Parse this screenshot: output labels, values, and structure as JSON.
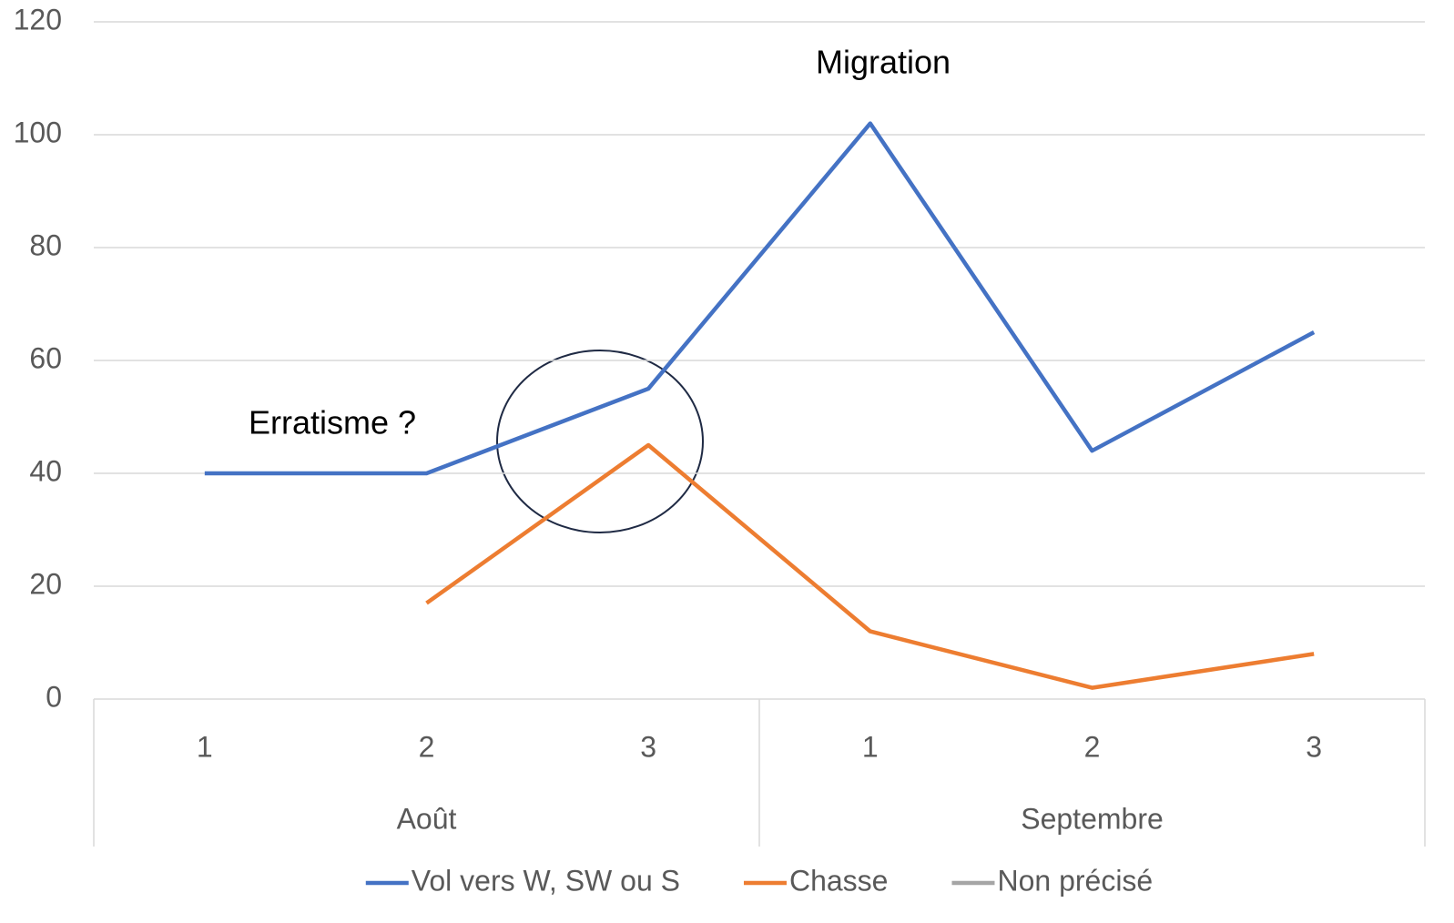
{
  "chart_data": {
    "type": "line",
    "groups": [
      {
        "name": "Août",
        "categories": [
          "1",
          "2",
          "3"
        ]
      },
      {
        "name": "Septembre",
        "categories": [
          "1",
          "2",
          "3"
        ]
      }
    ],
    "series": [
      {
        "name": "Vol vers W, SW ou S",
        "color": "#4472c4",
        "values": [
          40,
          40,
          55,
          102,
          44,
          65
        ]
      },
      {
        "name": "Chasse",
        "color": "#ed7d31",
        "values": [
          null,
          17,
          45,
          12,
          2,
          8
        ]
      },
      {
        "name": "Non précisé",
        "color": "#a5a5a5",
        "values": [
          null,
          null,
          null,
          null,
          null,
          null
        ]
      }
    ],
    "annotations": [
      "Migration",
      "Erratisme ?"
    ],
    "ylim": [
      0,
      120
    ],
    "yticks": [
      0,
      20,
      40,
      60,
      80,
      100,
      120
    ],
    "grid": true,
    "legend": "bottom"
  }
}
